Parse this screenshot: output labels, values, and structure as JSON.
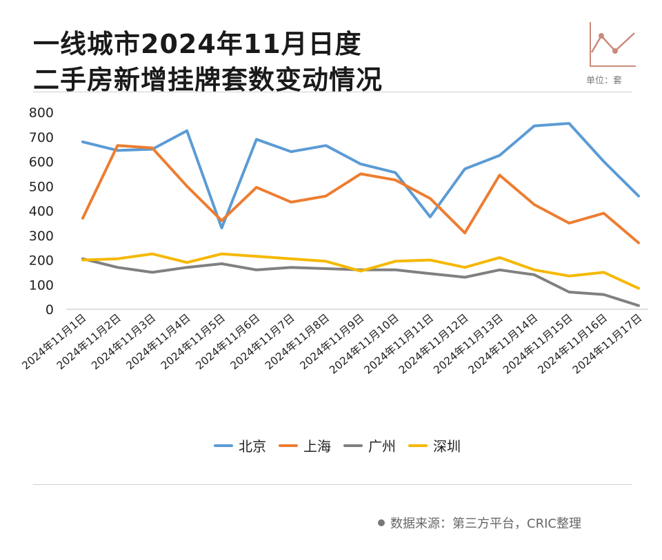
{
  "header": {
    "title_line1": "一线城市2024年11月日度",
    "title_line2": "二手房新增挂牌套数变动情况",
    "unit_label": "单位：套"
  },
  "footer": {
    "source": "数据来源：第三方平台，CRIC整理"
  },
  "chart_data": {
    "type": "line",
    "title": "一线城市2024年11月日度二手房新增挂牌套数变动情况",
    "xlabel": "",
    "ylabel": "",
    "ylim": [
      0,
      800
    ],
    "yticks": [
      0,
      100,
      200,
      300,
      400,
      500,
      600,
      700,
      800
    ],
    "grid": false,
    "legend_position": "bottom",
    "categories": [
      "2024年11月1日",
      "2024年11月2日",
      "2024年11月3日",
      "2024年11月4日",
      "2024年11月5日",
      "2024年11月6日",
      "2024年11月7日",
      "2024年11月8日",
      "2024年11月9日",
      "2024年11月10日",
      "2024年11月11日",
      "2024年11月12日",
      "2024年11月13日",
      "2024年11月14日",
      "2024年11月15日",
      "2024年11月16日",
      "2024年11月17日"
    ],
    "series": [
      {
        "name": "北京",
        "color": "#5b9bd5",
        "values": [
          680,
          645,
          650,
          725,
          330,
          690,
          640,
          665,
          590,
          555,
          375,
          570,
          625,
          745,
          755,
          600,
          460
        ]
      },
      {
        "name": "上海",
        "color": "#ed7d31",
        "values": [
          370,
          665,
          655,
          500,
          360,
          495,
          435,
          460,
          550,
          525,
          450,
          310,
          545,
          425,
          350,
          390,
          270
        ]
      },
      {
        "name": "广州",
        "color": "#808080",
        "values": [
          205,
          170,
          150,
          170,
          185,
          160,
          170,
          165,
          160,
          160,
          145,
          130,
          160,
          140,
          70,
          60,
          15
        ]
      },
      {
        "name": "深圳",
        "color": "#f5b800",
        "values": [
          200,
          205,
          225,
          190,
          225,
          215,
          205,
          195,
          155,
          195,
          200,
          170,
          210,
          160,
          135,
          150,
          85
        ]
      }
    ]
  }
}
